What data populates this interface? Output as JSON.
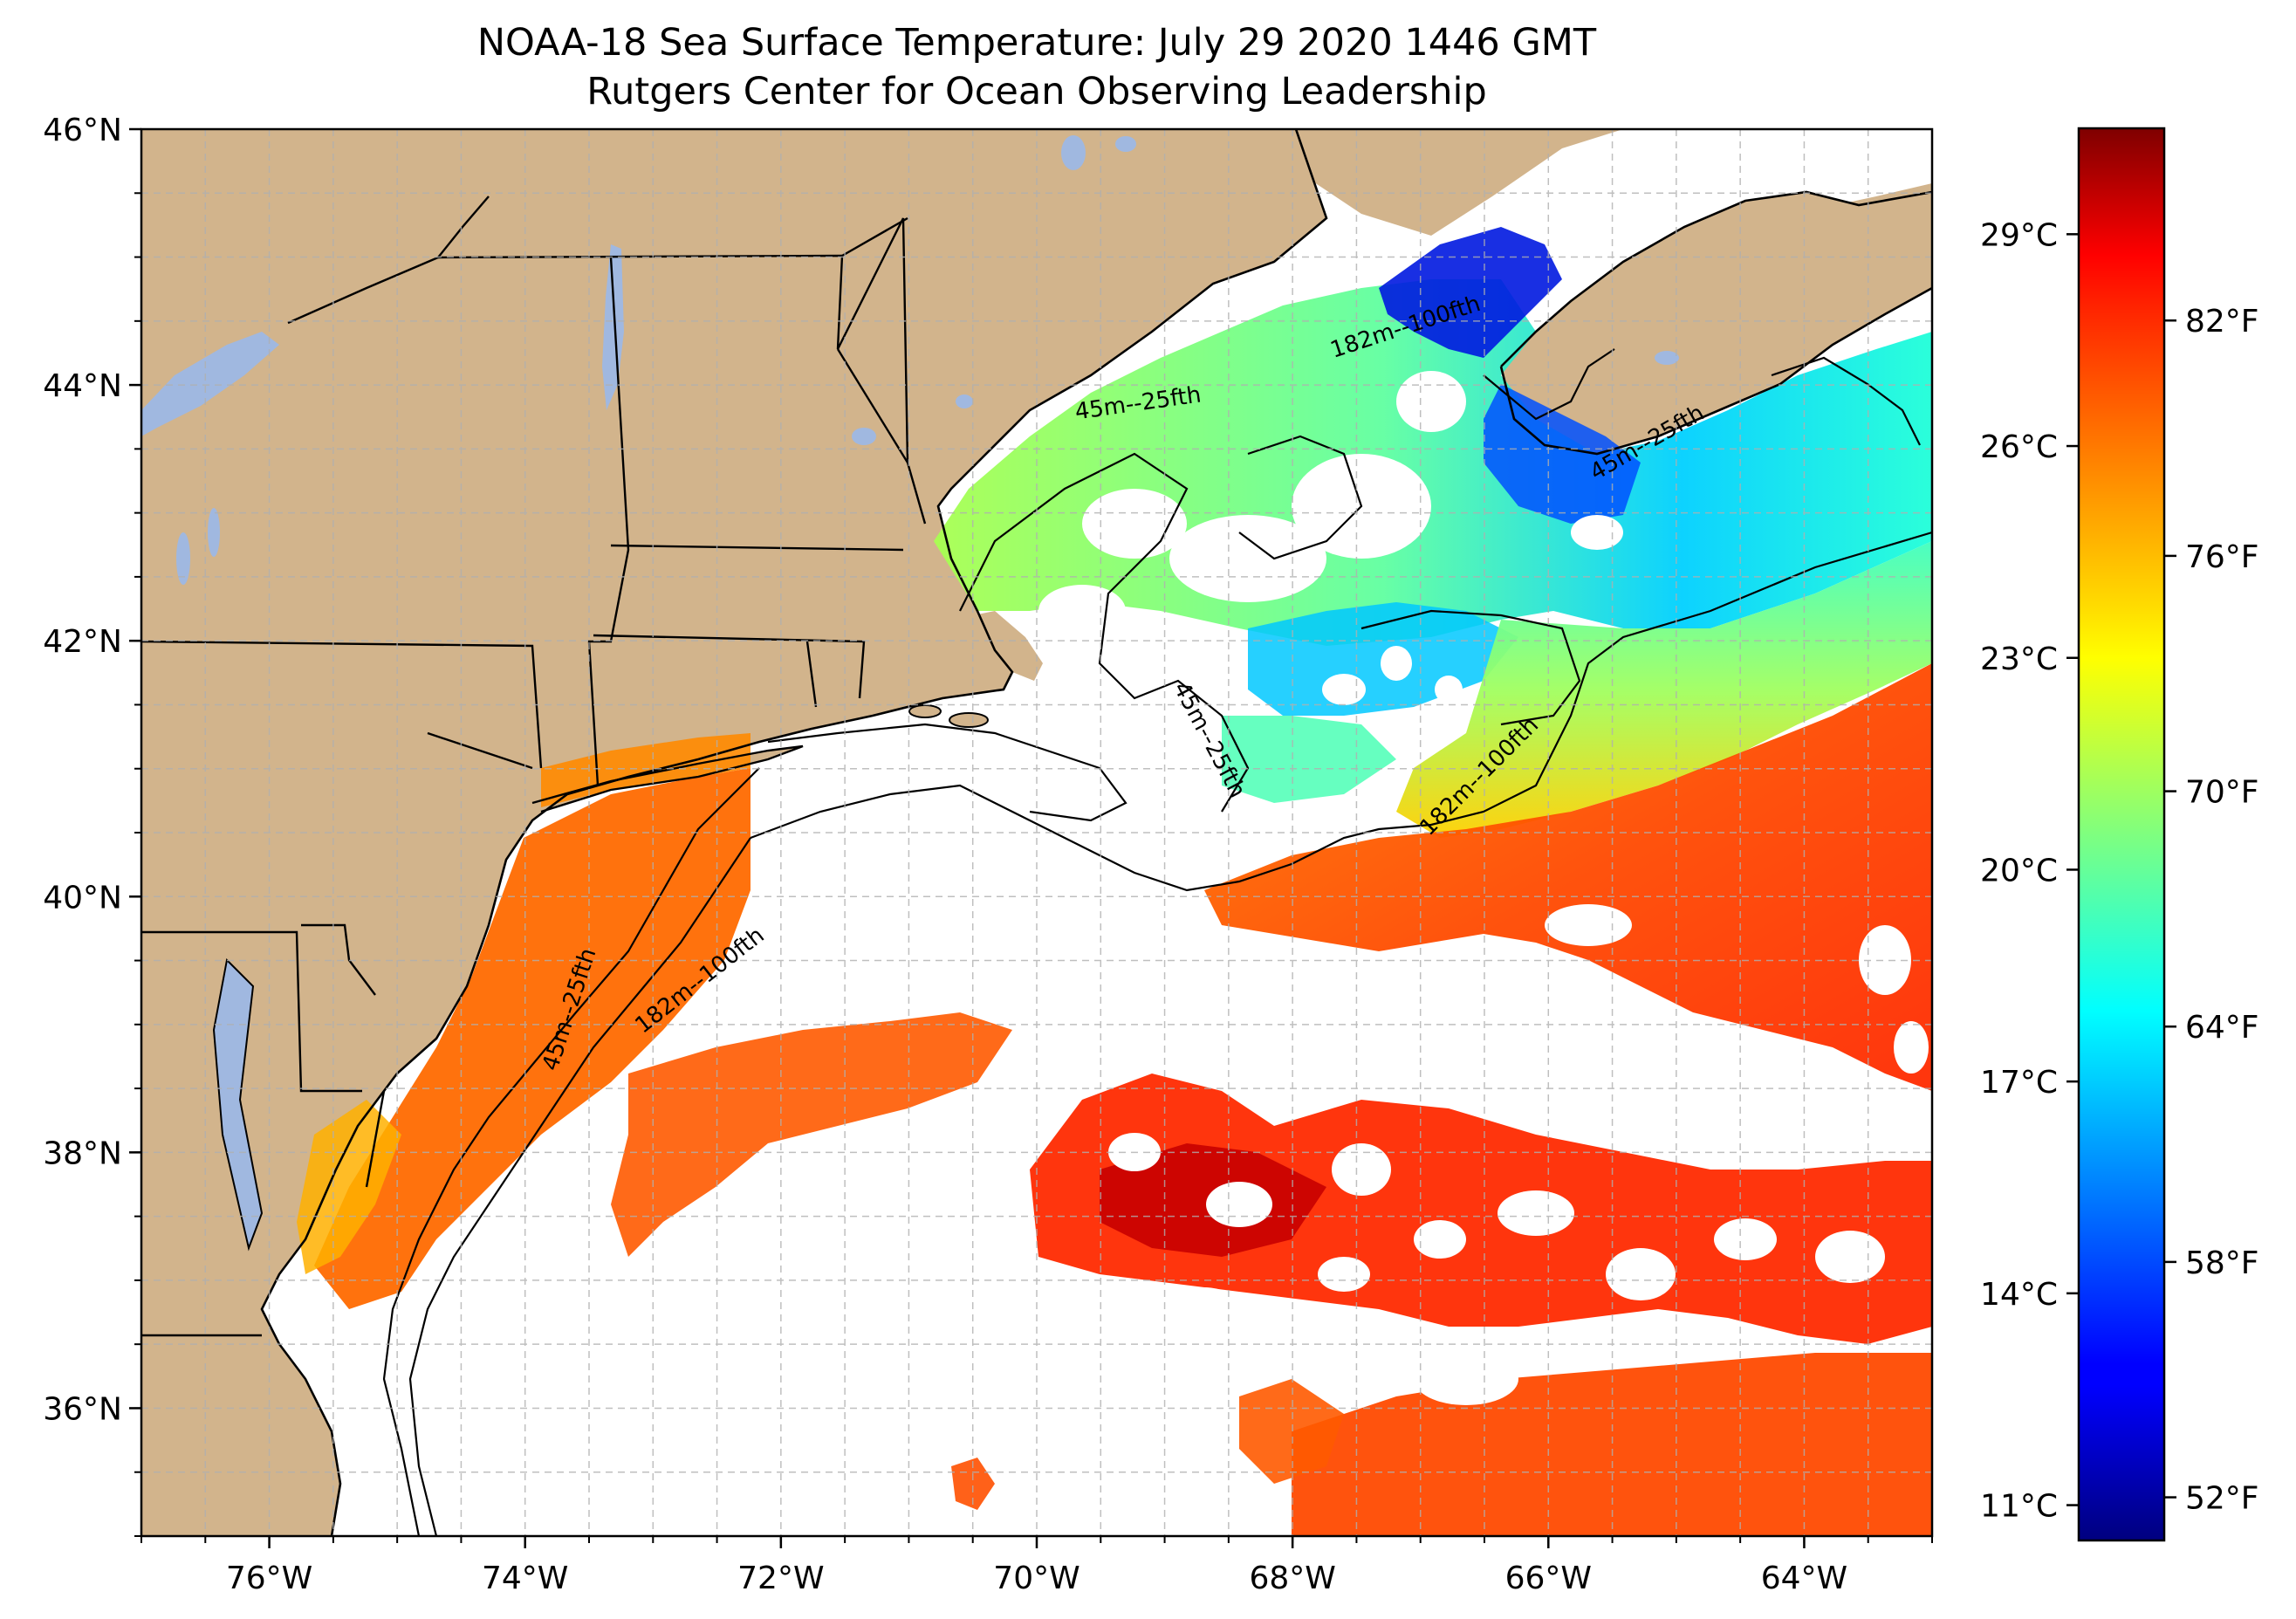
{
  "title": "NOAA-18 Sea Surface Temperature: July 29 2020 1446 GMT",
  "subtitle": "Rutgers Center for Ocean Observing Leadership",
  "map": {
    "lon_range": [
      -77,
      -63
    ],
    "lat_range": [
      35,
      46
    ],
    "lon_ticks": [
      {
        "value": -76,
        "label": "76°W"
      },
      {
        "value": -74,
        "label": "74°W"
      },
      {
        "value": -72,
        "label": "72°W"
      },
      {
        "value": -70,
        "label": "70°W"
      },
      {
        "value": -68,
        "label": "68°W"
      },
      {
        "value": -66,
        "label": "66°W"
      },
      {
        "value": -64,
        "label": "64°W"
      }
    ],
    "lat_ticks": [
      {
        "value": 46,
        "label": "46°N"
      },
      {
        "value": 44,
        "label": "44°N"
      },
      {
        "value": 42,
        "label": "42°N"
      },
      {
        "value": 40,
        "label": "40°N"
      },
      {
        "value": 38,
        "label": "38°N"
      },
      {
        "value": 36,
        "label": "36°N"
      }
    ],
    "gridlines": "dashed gray every 0.5°",
    "land_color": "#d2b48c",
    "lake_color": "#a0b8e0",
    "no_data_color": "#ffffff",
    "contour_labels": [
      {
        "text": "45m--25fth",
        "lon": -69.2,
        "lat": 43.8,
        "angle": -8
      },
      {
        "text": "182m--100fth",
        "lon": -67.1,
        "lat": 44.4,
        "angle": -18
      },
      {
        "text": "45m--25fth",
        "lon": -65.2,
        "lat": 43.5,
        "angle": -30
      },
      {
        "text": "45m--25fth",
        "lon": -68.7,
        "lat": 41.2,
        "angle": 62
      },
      {
        "text": "182m--100fth",
        "lon": -66.5,
        "lat": 40.9,
        "angle": -45
      },
      {
        "text": "182m--100fth",
        "lon": -72.6,
        "lat": 39.3,
        "angle": -38
      },
      {
        "text": "45m--25fth",
        "lon": -73.6,
        "lat": 39.1,
        "angle": -72
      }
    ]
  },
  "colorbar": {
    "colormap": "jet",
    "celsius_range": [
      10.5,
      30.5
    ],
    "celsius_ticks": [
      {
        "value": 29,
        "label": "29°C"
      },
      {
        "value": 26,
        "label": "26°C"
      },
      {
        "value": 23,
        "label": "23°C"
      },
      {
        "value": 20,
        "label": "20°C"
      },
      {
        "value": 17,
        "label": "17°C"
      },
      {
        "value": 14,
        "label": "14°C"
      },
      {
        "value": 11,
        "label": "11°C"
      }
    ],
    "fahrenheit_ticks": [
      {
        "value": 82,
        "label": "82°F"
      },
      {
        "value": 76,
        "label": "76°F"
      },
      {
        "value": 70,
        "label": "70°F"
      },
      {
        "value": 64,
        "label": "64°F"
      },
      {
        "value": 58,
        "label": "58°F"
      },
      {
        "value": 52,
        "label": "52°F"
      }
    ]
  }
}
